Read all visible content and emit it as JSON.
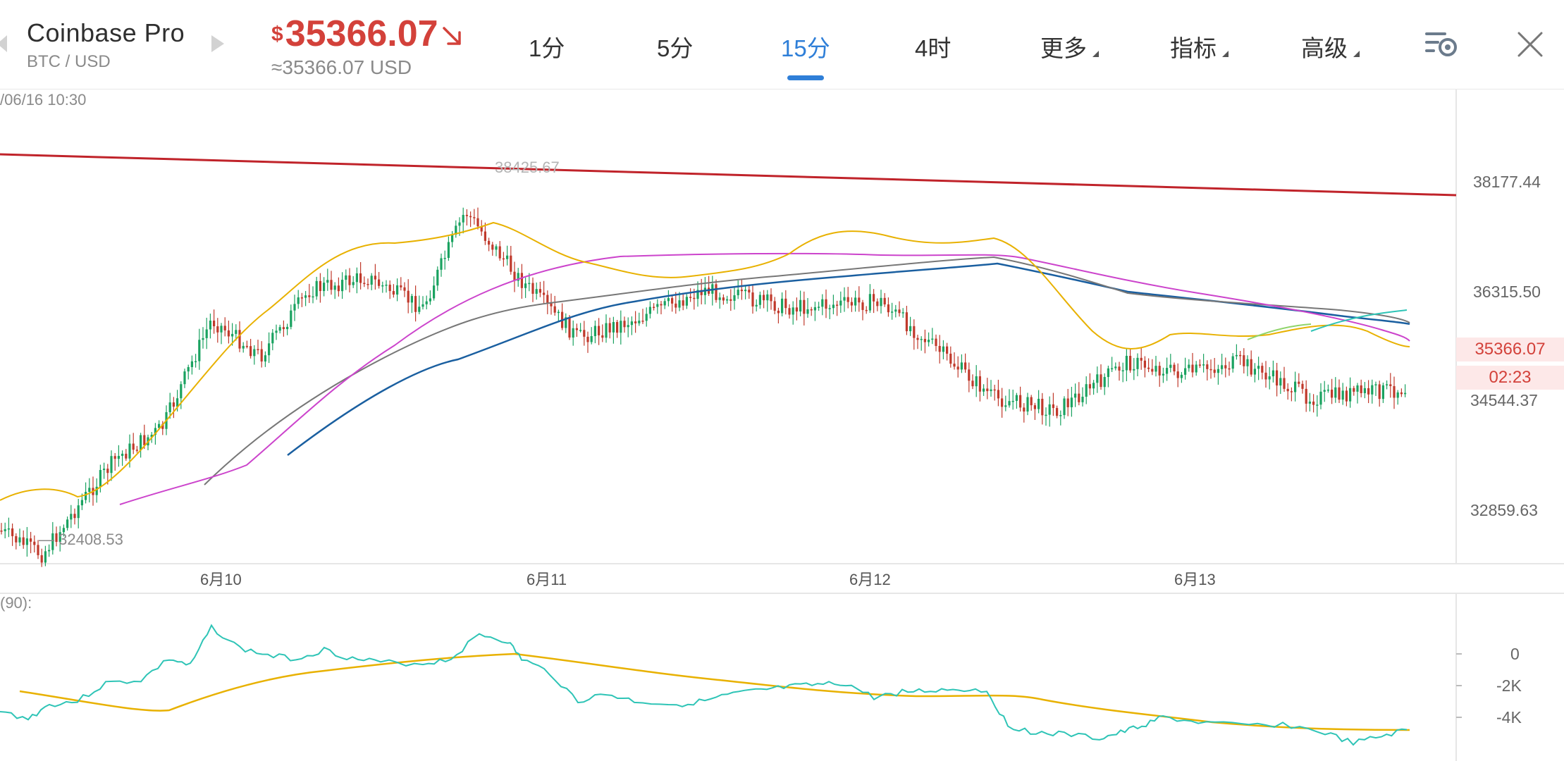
{
  "header": {
    "exchange": "Coinbase Pro",
    "pair": "BTC / USD",
    "price_symbol": "$",
    "price": "35366.07",
    "price_usd": "≈35366.07 USD",
    "price_direction_icon": "arrow-down-right-icon",
    "price_color": "#d3413a",
    "accent_color": "#2f7fd8",
    "tabs": [
      {
        "label": "1分",
        "active": false
      },
      {
        "label": "5分",
        "active": false
      },
      {
        "label": "15分",
        "active": true
      },
      {
        "label": "4时",
        "active": false
      },
      {
        "label": "更多",
        "active": false
      },
      {
        "label": "指标",
        "active": false
      },
      {
        "label": "高级",
        "active": false
      }
    ],
    "settings_icon": "chart-settings-icon",
    "close_icon": "close-icon"
  },
  "chart": {
    "timestamp": "/06/16 10:30",
    "y_axis": [
      "38177.44",
      "36315.50",
      "34544.37",
      "32859.63"
    ],
    "current_price_tag": "35366.07",
    "countdown_tag": "02:23",
    "high_label": "38425.67",
    "low_label": "— 32408.53",
    "x_axis": [
      "6月10",
      "6月11",
      "6月12",
      "6月13"
    ],
    "indicator_label": "(90):",
    "indicator_y_axis": [
      "0",
      "-2K",
      "-4K"
    ]
  },
  "chart_data": {
    "type": "candlestick",
    "title": "",
    "x_categories": [
      "6月10",
      "6月11",
      "6月12",
      "6月13"
    ],
    "y_ticks": [
      38177.44,
      36315.5,
      34544.37,
      32859.63
    ],
    "high": 38425.67,
    "low": 32408.53,
    "last": 35366.07,
    "close_series": [
      {
        "x": "6月09 12:00",
        "y": 33000
      },
      {
        "x": "6月09 18:00",
        "y": 32600
      },
      {
        "x": "6月10 00:00",
        "y": 33400
      },
      {
        "x": "6月10 06:00",
        "y": 34200
      },
      {
        "x": "6月10 12:00",
        "y": 34700
      },
      {
        "x": "6月10 18:00",
        "y": 36500
      },
      {
        "x": "6月10 21:00",
        "y": 35900
      },
      {
        "x": "6月11 00:00",
        "y": 37000
      },
      {
        "x": "6月11 06:00",
        "y": 37200
      },
      {
        "x": "6月11 10:00",
        "y": 36700
      },
      {
        "x": "6月11 14:00",
        "y": 38300
      },
      {
        "x": "6月11 18:00",
        "y": 37200
      },
      {
        "x": "6月12 00:00",
        "y": 36200
      },
      {
        "x": "6月12 06:00",
        "y": 36500
      },
      {
        "x": "6月12 12:00",
        "y": 37000
      },
      {
        "x": "6月12 18:00",
        "y": 36700
      },
      {
        "x": "6月13 00:00",
        "y": 36800
      },
      {
        "x": "6月13 06:00",
        "y": 35200
      },
      {
        "x": "6月13 12:00",
        "y": 35000
      },
      {
        "x": "6月13 18:00",
        "y": 35800
      },
      {
        "x": "6月14 00:00",
        "y": 35600
      },
      {
        "x": "6月14 06:00",
        "y": 35800
      },
      {
        "x": "6月14 12:00",
        "y": 35200
      },
      {
        "x": "6月14 14:00",
        "y": 35366.07
      }
    ],
    "trendline": {
      "color": "#c0232a",
      "from": 38650,
      "to": 37900
    },
    "ma_colors": [
      "#e8b100",
      "#cc44cc",
      "#777777",
      "#1a5fa0"
    ],
    "indicator": {
      "label": "(90):",
      "y_ticks": [
        0,
        -2000,
        -4000
      ],
      "line_colors": [
        "#2ec4b6",
        "#e8b100"
      ]
    }
  }
}
